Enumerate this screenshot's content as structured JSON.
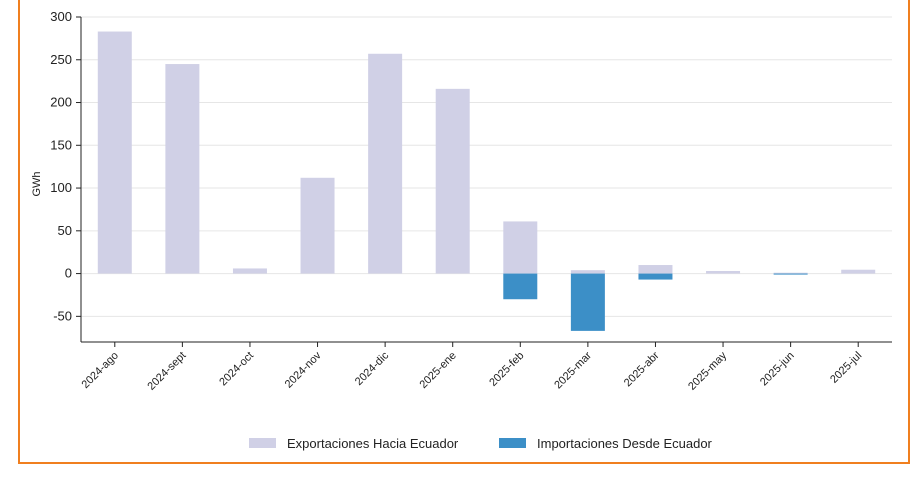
{
  "chart_data": {
    "type": "bar",
    "ylabel": "GWh",
    "xlabel": "",
    "ylim": [
      -80,
      300
    ],
    "yticks": [
      -50,
      0,
      50,
      100,
      150,
      200,
      250,
      300
    ],
    "grid": true,
    "legend_position": "bottom-center",
    "categories": [
      "2024-ago",
      "2024-sept",
      "2024-oct",
      "2024-nov",
      "2024-dic",
      "2025-ene",
      "2025-feb",
      "2025-mar",
      "2025-abr",
      "2025-may",
      "2025-jun",
      "2025-jul"
    ],
    "series": [
      {
        "name": "Exportaciones Hacia Ecuador",
        "color": "#d0d0e6",
        "values": [
          283,
          245,
          6,
          112,
          257,
          216,
          61,
          4,
          10,
          3,
          1,
          4.5
        ]
      },
      {
        "name": "Importaciones Desde Ecuador",
        "color": "#3c8fc7",
        "values": [
          0,
          0,
          0,
          0,
          0,
          0,
          -30,
          -67,
          -7,
          0,
          -1,
          0
        ]
      }
    ]
  }
}
